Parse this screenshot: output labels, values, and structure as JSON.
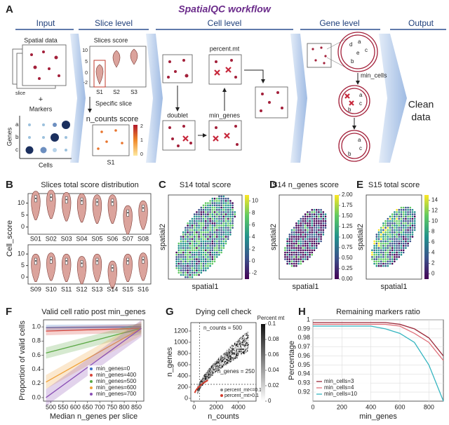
{
  "panel_a": {
    "label": "A",
    "title": "SpatialQC workflow",
    "columns": [
      "Input",
      "Slice level",
      "Cell level",
      "Gene level",
      "Output"
    ],
    "spatial_data": "Spatial data",
    "slice": "slice",
    "plus": "+",
    "markers": "Markers",
    "genes": "Genes",
    "cells": "Cells",
    "marker_rows": [
      "a",
      "b",
      "c"
    ],
    "slices_score": "Slices score",
    "score_ticks": [
      "10",
      "5",
      "0",
      "-2"
    ],
    "slices": [
      "S1",
      "S2",
      "S3"
    ],
    "specific_slice": "Specific slice",
    "n_counts_score": "n_counts score",
    "cbar_ticks": [
      "2",
      "1",
      "0"
    ],
    "slice_label": "S1",
    "percent_mt": "percent.mt",
    "doublet": "doublet",
    "min_genes": "min_genes",
    "min_cells": "min_cells",
    "gene_letters": [
      "a",
      "b",
      "c",
      "d",
      "e"
    ],
    "output": [
      "Clean",
      "data"
    ]
  },
  "chart_data": [
    {
      "type": "violin",
      "label": "B",
      "title": "Slices total score distribution",
      "y_label": "Cell_score",
      "categories": [
        "S01",
        "S02",
        "S03",
        "S04",
        "S05",
        "S06",
        "S07",
        "S08",
        "S09",
        "S10",
        "S11",
        "S12",
        "S13",
        "S14",
        "S15",
        "S16"
      ],
      "values": [
        12,
        12.5,
        11.5,
        11,
        10.5,
        10.5,
        6,
        8,
        7,
        7.5,
        7,
        6,
        7,
        4,
        7,
        7.5
      ],
      "color": "#dba39c",
      "ylim": [
        -3,
        14
      ],
      "yticks": [
        0,
        5,
        10
      ]
    },
    {
      "type": "heatmap",
      "label": "C",
      "title": "S14 total score",
      "x_label": "spatial1",
      "y_label": "spatial2",
      "clim": [
        -3,
        11
      ],
      "colorbar_ticks": [
        -2,
        0,
        2,
        4,
        6,
        8,
        10
      ]
    },
    {
      "type": "heatmap",
      "label": "D",
      "title": "S14 n_genes score",
      "x_label": "spatial1",
      "y_label": "spatial2",
      "clim": [
        0,
        2
      ],
      "colorbar_ticks": [
        {
          "value": 0,
          "label": "0.00"
        },
        0.25,
        {
          "value": 0.5,
          "label": "0.50"
        },
        0.75,
        {
          "value": 1,
          "label": "1.00"
        },
        1.25,
        {
          "value": 1.5,
          "label": "1.50"
        },
        1.75,
        {
          "value": 2,
          "label": "2.00"
        }
      ]
    },
    {
      "type": "heatmap",
      "label": "E",
      "title": "S15 total score",
      "x_label": "spatial1",
      "y_label": "spatial2",
      "clim": [
        -1,
        15
      ],
      "colorbar_ticks": [
        0,
        2,
        4,
        6,
        8,
        10,
        12,
        14
      ]
    },
    {
      "type": "line",
      "label": "F",
      "title": "Valid cell ratio post min_genes",
      "x_label": "Median n_genes per slice",
      "y_label": "Proportion of valid cells",
      "x": [
        480,
        870
      ],
      "xlim": [
        470,
        880
      ],
      "xticks": [
        500,
        550,
        600,
        650,
        700,
        750,
        800,
        850
      ],
      "ylim": [
        -0.05,
        1.1
      ],
      "yticks": [
        {
          "value": 0,
          "label": "0.0"
        },
        0.2,
        0.4,
        0.6,
        0.8,
        {
          "value": 1,
          "label": "1.0"
        }
      ],
      "legend": "lower right",
      "series": [
        {
          "name": "min_genes=0",
          "color": "#3b6fc4",
          "values": [
            0.99,
            1.0
          ]
        },
        {
          "name": "min_genes=400",
          "color": "#d8453a",
          "values": [
            0.94,
            0.98
          ]
        },
        {
          "name": "min_genes=500",
          "color": "#5aa845",
          "values": [
            0.63,
            0.98
          ]
        },
        {
          "name": "min_genes=600",
          "color": "#f0a23a",
          "values": [
            0.22,
            0.98
          ]
        },
        {
          "name": "min_genes=700",
          "color": "#8a4fb5",
          "values": [
            0.0,
            0.98
          ]
        }
      ]
    },
    {
      "type": "scatter",
      "label": "G",
      "title": "Dying cell check",
      "x_label": "n_counts",
      "y_label": "n_genes",
      "xlim": [
        -300,
        5600
      ],
      "xticks": [
        0,
        2000,
        4000
      ],
      "ylim": [
        -50,
        1350
      ],
      "yticks": [
        0,
        200,
        400,
        600,
        800,
        1000,
        1200
      ],
      "vlines": [
        500
      ],
      "hlines": [
        250
      ],
      "annotations": [
        "n_counts = 500",
        "n_genes = 250"
      ],
      "colorbar_title": "Percent mt",
      "colorbar_ticks": [
        0,
        0.02,
        0.04,
        0.06,
        0.08,
        0.1
      ],
      "series": [
        {
          "name": "percent_mt<=0.1",
          "color": "#888888"
        },
        {
          "name": "percent_mt>0.1",
          "color": "#d43c2c"
        }
      ]
    },
    {
      "type": "line",
      "label": "H",
      "title": "Remaining markers ratio",
      "x_label": "min_genes",
      "y_label": "Percentage",
      "x": [
        0,
        400,
        500,
        600,
        700,
        800,
        900
      ],
      "xlim": [
        0,
        900
      ],
      "xticks": [
        0,
        200,
        400,
        600,
        800
      ],
      "ylim": [
        0.91,
        1.0
      ],
      "yticks": [
        0.92,
        0.93,
        0.94,
        0.95,
        0.96,
        0.97,
        0.98,
        0.99,
        1
      ],
      "grid": true,
      "legend": "lower left",
      "series": [
        {
          "name": "min_cells=3",
          "color": "#9b2a3a",
          "values": [
            0.997,
            0.997,
            0.997,
            0.995,
            0.99,
            0.98,
            0.96
          ]
        },
        {
          "name": "min_cells=4",
          "color": "#e0707a",
          "values": [
            0.995,
            0.995,
            0.995,
            0.993,
            0.985,
            0.975,
            0.955
          ]
        },
        {
          "name": "min_cells=10",
          "color": "#35b5c0",
          "values": [
            0.993,
            0.993,
            0.99,
            0.985,
            0.975,
            0.95,
            0.91
          ]
        }
      ]
    }
  ]
}
